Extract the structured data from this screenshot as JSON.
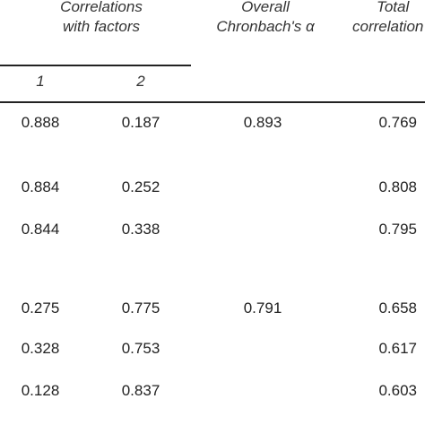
{
  "header": {
    "factors": [
      "Correlations",
      "with factors"
    ],
    "alpha": [
      "Overall",
      "Chronbach's α"
    ],
    "total": [
      "Total",
      "correlation"
    ],
    "factor_numbers": [
      "1",
      "2"
    ]
  },
  "table": {
    "rows": [
      [
        "0.888",
        "0.187",
        "0.893",
        "0.769"
      ],
      [
        "0.884",
        "0.252",
        null,
        "0.808"
      ],
      [
        "0.844",
        "0.338",
        null,
        "0.795"
      ],
      [
        "0.275",
        "0.775",
        "0.791",
        "0.658"
      ],
      [
        "0.328",
        "0.753",
        null,
        "0.617"
      ],
      [
        "0.128",
        "0.837",
        null,
        "0.603"
      ]
    ]
  }
}
